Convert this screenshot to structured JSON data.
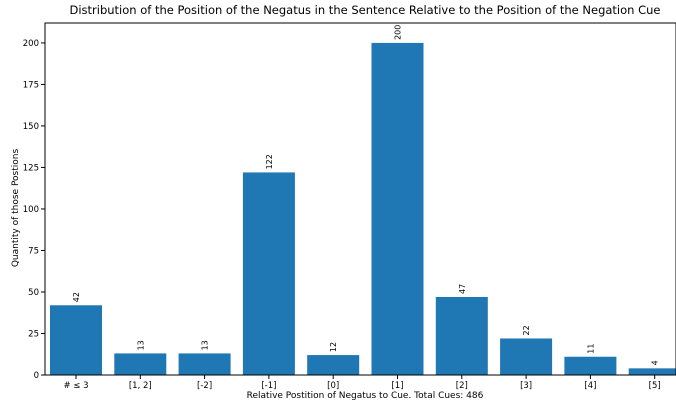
{
  "chart_data": {
    "type": "bar",
    "title": "Distribution of the Position of the Negatus in the Sentence Relative to the Position of the Negation Cue",
    "xlabel": "Relative Postition of Negatus to Cue. Total Cues: 486",
    "ylabel": "Quantity of those Postions",
    "categories": [
      "# ≤ 3",
      "[1, 2]",
      "[-2]",
      "[-1]",
      "[0]",
      "[1]",
      "[2]",
      "[3]",
      "[4]",
      "[5]"
    ],
    "values": [
      42,
      13,
      13,
      122,
      12,
      200,
      47,
      22,
      11,
      4
    ],
    "data_labels": [
      "42",
      "13",
      "13",
      "122",
      "12",
      "200",
      "47",
      "22",
      "11",
      "4"
    ],
    "ylim": [
      0,
      212
    ],
    "yticks": [
      0,
      25,
      50,
      75,
      100,
      125,
      150,
      175,
      200
    ],
    "ytick_labels": [
      "0",
      "25",
      "50",
      "75",
      "100",
      "125",
      "150",
      "175",
      "200"
    ],
    "grid": false,
    "bar_color": "#1f77b4"
  }
}
